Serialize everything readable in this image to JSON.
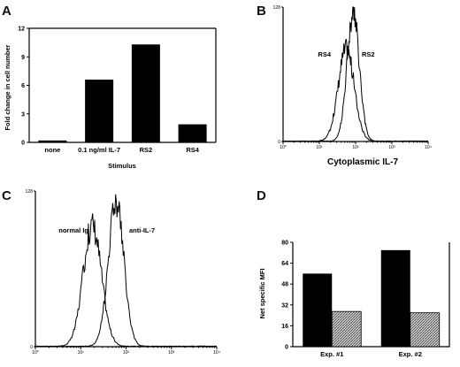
{
  "chart_data": [
    {
      "panel": "A",
      "type": "bar",
      "categories": [
        "none",
        "0.1 ng/ml IL-7",
        "RS2",
        "RS4"
      ],
      "values": [
        0.2,
        6.6,
        10.3,
        1.9
      ],
      "xlabel": "Stimulus",
      "ylabel": "Fold change in cell number",
      "ylim": [
        0,
        12
      ],
      "yticks": [
        0,
        3,
        6,
        9,
        12
      ],
      "grid": false,
      "color": "#000000"
    },
    {
      "panel": "B",
      "type": "line",
      "xlabel": "Cytoplasmic IL-7",
      "ylabel_tick": "128",
      "xscale": "log",
      "xlim": [
        1,
        10000
      ],
      "ylim": [
        0,
        128
      ],
      "xtick_labels": [
        "10⁰",
        "10¹",
        "10²",
        "10³",
        "10⁴"
      ],
      "ytick_labels": [
        "0",
        "128"
      ],
      "series": [
        {
          "name": "RS4",
          "peak_x": 55,
          "peak_y": 88,
          "spread_decades": 0.22
        },
        {
          "name": "RS2",
          "peak_x": 85,
          "peak_y": 122,
          "spread_decades": 0.17
        }
      ]
    },
    {
      "panel": "C",
      "type": "line",
      "xscale": "log",
      "xlim": [
        1,
        10000
      ],
      "ylim": [
        0,
        128
      ],
      "xtick_labels": [
        "10⁰",
        "10¹",
        "10²",
        "10³",
        "10⁴"
      ],
      "ytick_labels": [
        "0",
        "128"
      ],
      "series": [
        {
          "name": "normal Ig",
          "peak_x": 18,
          "peak_y": 100,
          "spread_decades": 0.2
        },
        {
          "name": "anti-IL-7",
          "peak_x": 60,
          "peak_y": 120,
          "spread_decades": 0.17
        }
      ]
    },
    {
      "panel": "D",
      "type": "bar",
      "categories": [
        "Exp. #1",
        "Exp. #2"
      ],
      "series": [
        {
          "values": [
            56,
            74
          ],
          "color": "#000000",
          "fill": "solid"
        },
        {
          "values": [
            27,
            26
          ],
          "color": "#888888",
          "fill": "hatched"
        }
      ],
      "ylabel": "Net specific MFI",
      "ylim": [
        0,
        80
      ],
      "yticks": [
        0,
        16,
        32,
        48,
        64,
        80
      ],
      "grid": false
    }
  ]
}
